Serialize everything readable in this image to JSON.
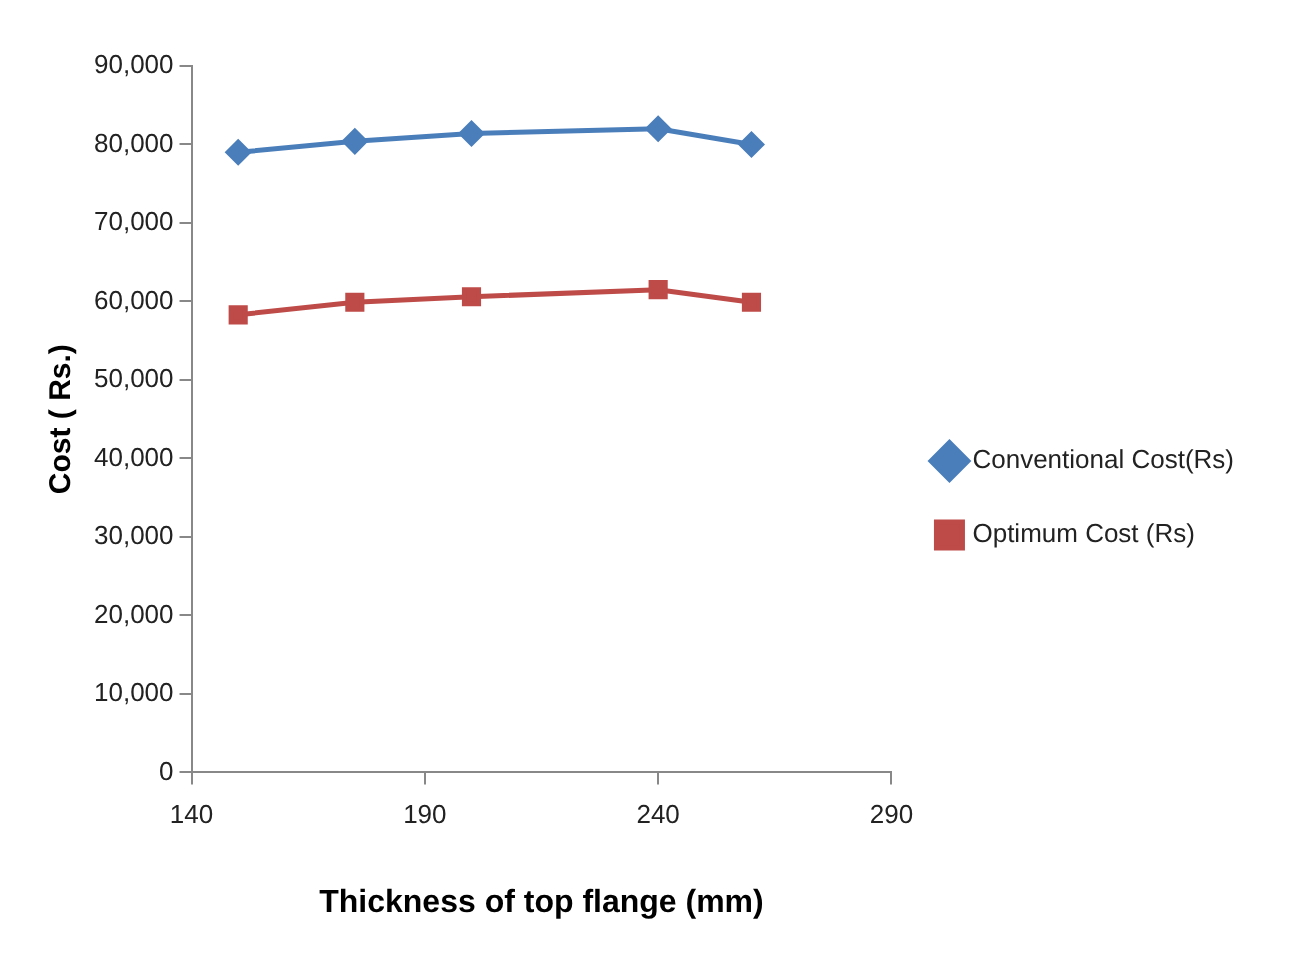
{
  "chart_data": {
    "type": "line",
    "xlabel": "Thickness of top flange (mm)",
    "ylabel": "Cost ( Rs.)",
    "x": [
      150,
      175,
      200,
      240,
      260
    ],
    "series": [
      {
        "name": "Conventional Cost(Rs)",
        "color": "#4a7ebb",
        "marker": "diamond",
        "values": [
          79000,
          80400,
          81400,
          82000,
          80000
        ]
      },
      {
        "name": "Optimum Cost (Rs)",
        "color": "#be4b48",
        "marker": "square",
        "values": [
          58300,
          59900,
          60600,
          61500,
          59900
        ]
      }
    ],
    "xlim": [
      140,
      290
    ],
    "xticks": [
      140,
      190,
      240,
      290
    ],
    "ylim": [
      0,
      90000
    ],
    "yticks": [
      0,
      {
        "value": 10000,
        "label": "10,000"
      },
      {
        "value": 20000,
        "label": "20,000"
      },
      {
        "value": 30000,
        "label": "30,000"
      },
      {
        "value": 40000,
        "label": "40,000"
      },
      {
        "value": 50000,
        "label": "50,000"
      },
      {
        "value": 60000,
        "label": "60,000"
      },
      {
        "value": 70000,
        "label": "70,000"
      },
      {
        "value": 80000,
        "label": "80,000"
      },
      {
        "value": 90000,
        "label": "90,000"
      }
    ],
    "grid": false,
    "legend": "right",
    "line_style": "solid"
  }
}
